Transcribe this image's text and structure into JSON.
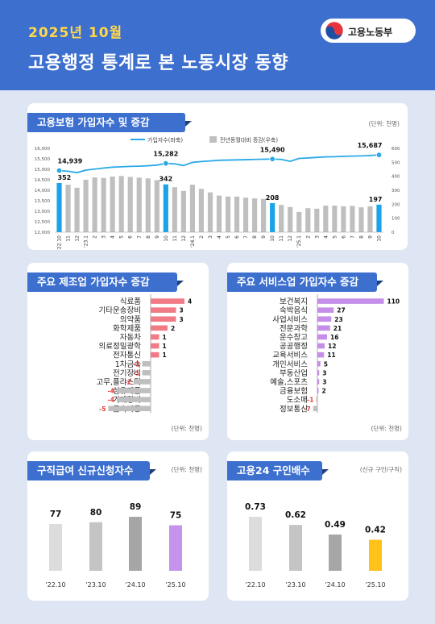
{
  "header": {
    "period": "2025년 10월",
    "title": "고용행정 통계로 본 노동시장 동향",
    "ministry": "고용노동부"
  },
  "sections": {
    "insured": {
      "title": "고용보험 가입자수 및 증감",
      "unit": "(단위: 천명)"
    },
    "manufacturing": {
      "title": "주요 제조업 가입자수 증감",
      "unit": "(단위: 천명)"
    },
    "services": {
      "title": "주요 서비스업 가입자수 증감",
      "unit": "(단위: 천명)"
    },
    "claims": {
      "title": "구직급여 신규신청자수",
      "unit": "(단위: 천명)"
    },
    "ratio": {
      "title": "고용24 구인배수",
      "unit": "(신규 구인/구직)"
    }
  },
  "chart_data": [
    {
      "type": "bar+line",
      "title": "고용보험 가입자수 및 증감",
      "categories": [
        "'22.10",
        "11",
        "12",
        "'23.1",
        "2",
        "3",
        "4",
        "5",
        "6",
        "7",
        "8",
        "9",
        "10",
        "11",
        "12",
        "'24.1",
        "2",
        "3",
        "4",
        "5",
        "6",
        "7",
        "8",
        "9",
        "10",
        "11",
        "12",
        "'25.1",
        "2",
        "3",
        "4",
        "5",
        "6",
        "7",
        "8",
        "9",
        "10"
      ],
      "series": [
        {
          "name": "가입자수(좌축)",
          "axis": "left",
          "color": "#29a9e6",
          "values": [
            14939,
            14910,
            14840,
            14960,
            15010,
            15060,
            15100,
            15120,
            15140,
            15150,
            15170,
            15200,
            15282,
            15260,
            15180,
            15330,
            15370,
            15400,
            15430,
            15440,
            15450,
            15460,
            15470,
            15480,
            15490,
            15470,
            15380,
            15520,
            15540,
            15570,
            15590,
            15600,
            15620,
            15630,
            15640,
            15660,
            15687
          ]
        },
        {
          "name": "전년동월대비 증감(우축)",
          "axis": "right",
          "color": "#bfbfbf",
          "values": [
            352,
            340,
            318,
            375,
            392,
            388,
            398,
            402,
            395,
            390,
            385,
            372,
            342,
            322,
            295,
            340,
            310,
            285,
            262,
            255,
            255,
            247,
            242,
            238,
            208,
            195,
            180,
            145,
            172,
            168,
            190,
            190,
            185,
            188,
            178,
            185,
            197
          ]
        }
      ],
      "highlighted_labels": [
        {
          "index": 0,
          "line": "14,939",
          "bar": "352"
        },
        {
          "index": 12,
          "line": "15,282",
          "bar": "342"
        },
        {
          "index": 24,
          "line": "15,490",
          "bar": "208"
        },
        {
          "index": 36,
          "line": "15,687",
          "bar": "197"
        }
      ],
      "y_left_ticks": [
        "16,000",
        "15,500",
        "15,000",
        "14,500",
        "14,000",
        "13,500",
        "13,000",
        "12,500",
        "12,000"
      ],
      "y_left_range": [
        12000,
        16000
      ],
      "y_right_ticks": [
        "600",
        "500",
        "400",
        "300",
        "200",
        "100",
        "0"
      ],
      "y_right_range": [
        0,
        600
      ],
      "highlight_bar_color": "#1aa3e8"
    },
    {
      "type": "bar",
      "orientation": "horizontal",
      "title": "주요 제조업 가입자수 증감",
      "categories": [
        "식료품",
        "기타운송장비",
        "의약품",
        "화학제품",
        "자동차",
        "의료정밀광학",
        "전자통신",
        "1차금속",
        "전기장비",
        "고무,플라스틱",
        "섬유제품",
        "기계장비",
        "금속가공"
      ],
      "values": [
        4,
        3,
        3,
        2,
        1,
        1,
        1,
        -1,
        -1,
        -2,
        -4,
        -4,
        -5
      ],
      "positive_color": "#f07b86",
      "negative_color": "#bfbfbf",
      "negative_label_color": "#e53935"
    },
    {
      "type": "bar",
      "orientation": "horizontal",
      "title": "주요 서비스업 가입자수 증감",
      "categories": [
        "보건복지",
        "숙박음식",
        "사업서비스",
        "전문과학",
        "운수창고",
        "공공행정",
        "교육서비스",
        "개인서비스",
        "부동산업",
        "예술,스포츠",
        "금융보험",
        "도소매",
        "정보통신"
      ],
      "values": [
        110,
        27,
        23,
        21,
        16,
        12,
        11,
        5,
        3,
        3,
        2,
        -1,
        -7
      ],
      "positive_color": "#c58ee8",
      "negative_color": "#bfbfbf",
      "negative_label_color": "#e53935"
    },
    {
      "type": "bar",
      "title": "구직급여 신규신청자수",
      "categories": [
        "'22.10",
        "'23.10",
        "'24.10",
        "'25.10"
      ],
      "values": [
        77,
        80,
        89,
        75
      ],
      "colors": [
        "#dcdcdc",
        "#c4c4c4",
        "#a6a6a6",
        "#c792ee"
      ]
    },
    {
      "type": "bar",
      "title": "고용24 구인배수",
      "categories": [
        "'22.10",
        "'23.10",
        "'24.10",
        "'25.10"
      ],
      "values": [
        0.73,
        0.62,
        0.49,
        0.42
      ],
      "value_labels": [
        "0.73",
        "0.62",
        "0.49",
        "0.42"
      ],
      "colors": [
        "#dcdcdc",
        "#c4c4c4",
        "#a6a6a6",
        "#ffc21a"
      ]
    }
  ]
}
